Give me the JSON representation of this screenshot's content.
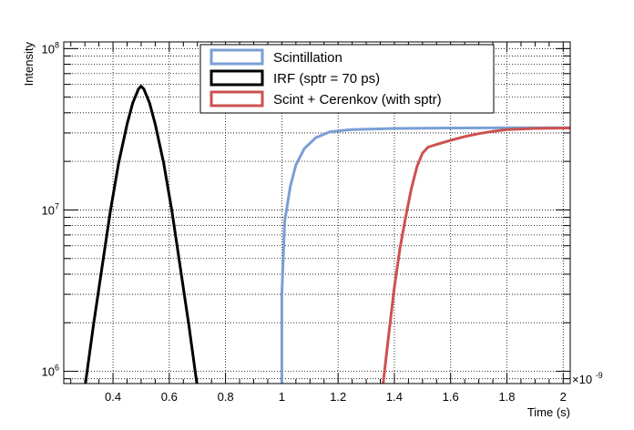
{
  "chart_data": {
    "type": "line",
    "xlabel": "Time (s)",
    "ylabel": "Intensity",
    "x_exponent_label": "×10",
    "x_exponent_power": "-9",
    "xlim": [
      0.225,
      2.025
    ],
    "ylim": [
      840000,
      110000000
    ],
    "yscale": "log",
    "grid": true,
    "legend_position": "top-center",
    "x_ticks": [
      0.4,
      0.6,
      0.8,
      1,
      1.2,
      1.4,
      1.6,
      1.8,
      2
    ],
    "x_tick_labels": [
      "0.4",
      "0.6",
      "0.8",
      "1",
      "1.2",
      "1.4",
      "1.6",
      "1.8",
      "2"
    ],
    "y_major_ticks": [
      {
        "value": 1000000,
        "base": "10",
        "exp": "6"
      },
      {
        "value": 10000000,
        "base": "10",
        "exp": "7"
      },
      {
        "value": 100000000,
        "base": "10",
        "exp": "8"
      }
    ],
    "series": [
      {
        "name": "Scintillation",
        "color": "#7a9fd6",
        "points": [
          [
            1.0,
            840000
          ],
          [
            1.0,
            3000000
          ],
          [
            1.01,
            8500000
          ],
          [
            1.03,
            14000000
          ],
          [
            1.05,
            19000000
          ],
          [
            1.08,
            24000000
          ],
          [
            1.12,
            28000000
          ],
          [
            1.17,
            30500000
          ],
          [
            1.25,
            31500000
          ],
          [
            1.4,
            32000000
          ],
          [
            1.6,
            32200000
          ],
          [
            1.8,
            32300000
          ],
          [
            2.025,
            32300000
          ]
        ]
      },
      {
        "name": "IRF (sptr = 70 ps)",
        "color": "#000000",
        "points": [
          [
            0.302,
            840000
          ],
          [
            0.33,
            1900000
          ],
          [
            0.36,
            4300000
          ],
          [
            0.39,
            9700000
          ],
          [
            0.42,
            19500000
          ],
          [
            0.45,
            34000000
          ],
          [
            0.47,
            46000000
          ],
          [
            0.49,
            56000000
          ],
          [
            0.5,
            58500000
          ],
          [
            0.51,
            56000000
          ],
          [
            0.53,
            46000000
          ],
          [
            0.55,
            34000000
          ],
          [
            0.58,
            19500000
          ],
          [
            0.61,
            9700000
          ],
          [
            0.64,
            4300000
          ],
          [
            0.67,
            1900000
          ],
          [
            0.698,
            840000
          ]
        ]
      },
      {
        "name": "Scint + Cerenkov (with sptr)",
        "color": "#cc5250",
        "points": [
          [
            1.36,
            840000
          ],
          [
            1.38,
            1700000
          ],
          [
            1.4,
            3300000
          ],
          [
            1.42,
            5800000
          ],
          [
            1.44,
            9000000
          ],
          [
            1.46,
            13500000
          ],
          [
            1.48,
            18500000
          ],
          [
            1.5,
            22500000
          ],
          [
            1.52,
            24500000
          ],
          [
            1.55,
            25500000
          ],
          [
            1.6,
            27000000
          ],
          [
            1.65,
            28500000
          ],
          [
            1.7,
            29700000
          ],
          [
            1.75,
            30700000
          ],
          [
            1.8,
            31500000
          ],
          [
            1.9,
            32000000
          ],
          [
            2.025,
            32200000
          ]
        ]
      }
    ]
  }
}
